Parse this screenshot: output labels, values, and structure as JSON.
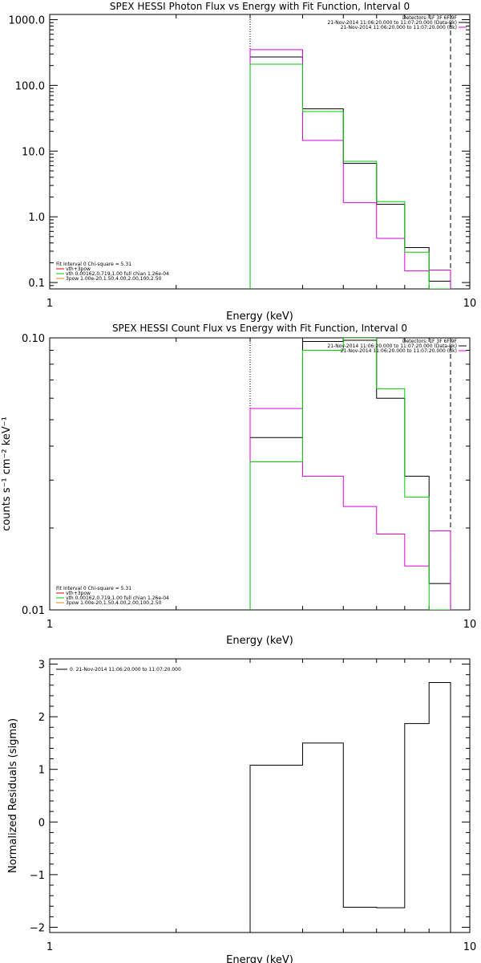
{
  "chart_data": [
    {
      "type": "line",
      "title": "SPEX HESSI Photon Flux vs Energy with Fit Function, Interval 0",
      "xlabel": "Energy (keV)",
      "ylabel": "",
      "xscale": "log",
      "yscale": "log",
      "xlim": [
        1,
        10
      ],
      "ylim": [
        0.08,
        1200
      ],
      "x_ticks": [
        "1",
        "10"
      ],
      "y_ticks": [
        {
          "value": 0.1,
          "label": "0.1"
        },
        {
          "value": 1,
          "label": "1.0"
        },
        {
          "value": 10,
          "label": "10.0"
        },
        {
          "value": 100,
          "label": "100.0"
        },
        {
          "value": 1000,
          "label": "1000.0"
        }
      ],
      "bin_edges": [
        3.0,
        4.0,
        5.0,
        6.0,
        7.0,
        8.0,
        9.0
      ],
      "series": [
        {
          "color": "#000000",
          "values": [
            270,
            44,
            6.5,
            1.55,
            0.34,
            0.105
          ]
        },
        {
          "color": "#dd00dd",
          "values": [
            350,
            14.5,
            1.65,
            0.47,
            0.15,
            0.155
          ]
        },
        {
          "color": "#00cc00",
          "values": [
            210,
            40,
            7.0,
            1.7,
            0.29,
            0.07
          ]
        }
      ],
      "vlines": [
        {
          "x": 3.0,
          "style": "dotted"
        },
        {
          "x": 9.0,
          "style": "dashed"
        }
      ],
      "annotations_right": [
        "Detectors: 1F 3F 6F 9F",
        "21-Nov-2014 11:06:20.000 to 11:07:20.000 (Data-Bk)",
        "21-Nov-2014 11:06:20.000 to 11:07:20.000 (Bk)"
      ],
      "annotations_left": [
        "Fit Interval  0   Chi-square = 5.31",
        "vth+3pow",
        "vth 0.00162,0.719,1.00  full chian 1.26e-04",
        "3pow 1.00e-20,1.50,4.00,2.00,100,2.50"
      ]
    },
    {
      "type": "line",
      "title": "SPEX HESSI Count Flux vs Energy with Fit Function, Interval 0",
      "xlabel": "Energy (keV)",
      "ylabel": "counts s⁻¹ cm⁻² keV⁻¹",
      "xscale": "log",
      "yscale": "log",
      "xlim": [
        1,
        10
      ],
      "ylim": [
        0.01,
        0.1
      ],
      "x_ticks": [
        "1",
        "10"
      ],
      "y_ticks": [
        {
          "value": 0.01,
          "label": "0.01"
        },
        {
          "value": 0.1,
          "label": "0.10"
        }
      ],
      "bin_edges": [
        3.0,
        4.0,
        5.0,
        6.0,
        7.0,
        8.0,
        9.0
      ],
      "series": [
        {
          "color": "#000000",
          "values": [
            0.043,
            0.097,
            0.098,
            0.06,
            0.031,
            0.0125
          ]
        },
        {
          "color": "#dd00dd",
          "values": [
            0.055,
            0.031,
            0.024,
            0.019,
            0.0145,
            0.0195
          ]
        },
        {
          "color": "#00cc00",
          "values": [
            0.035,
            0.09,
            0.1,
            0.065,
            0.026,
            0.0095
          ]
        }
      ],
      "vlines": [
        {
          "x": 3.0,
          "style": "dotted"
        },
        {
          "x": 9.0,
          "style": "dashed"
        }
      ],
      "annotations_right": [
        "Detectors: 1F 3F 6F 9F",
        "21-Nov-2014 11:06:20.000 to 11:07:20.000 (Data-Bk)",
        "21-Nov-2014 11:06:20.000 to 11:07:20.000 (Bk)"
      ],
      "annotations_left": [
        "Fit Interval  0   Chi-square = 5.31",
        "vth+3pow",
        "vth 0.00162,0.719,1.00  full chian 1.26e-04",
        "3pow 1.00e-20,1.50,4.00,2.00,100,2.50"
      ]
    },
    {
      "type": "line",
      "title": "",
      "xlabel": "Energy (keV)",
      "ylabel": "Normalized Residuals (sigma)",
      "xscale": "log",
      "yscale": "linear",
      "xlim": [
        1,
        10
      ],
      "ylim": [
        -2.1,
        3.1
      ],
      "x_ticks": [
        "1",
        "10"
      ],
      "y_ticks": [
        {
          "value": -2,
          "label": "−2"
        },
        {
          "value": -1,
          "label": "−1"
        },
        {
          "value": 0,
          "label": "0"
        },
        {
          "value": 1,
          "label": "1"
        },
        {
          "value": 2,
          "label": "2"
        },
        {
          "value": 3,
          "label": "3"
        }
      ],
      "bin_edges": [
        3.0,
        4.0,
        5.0,
        6.0,
        7.0,
        8.0,
        9.0
      ],
      "series": [
        {
          "color": "#000000",
          "values": [
            1.08,
            1.5,
            -1.62,
            -1.63,
            1.87,
            2.65
          ]
        }
      ],
      "vlines": [],
      "annotations_right": [],
      "annotations_left": [],
      "legend_text": "0. 21-Nov-2014 11:06:20.000 to 11:07:20.000"
    }
  ]
}
